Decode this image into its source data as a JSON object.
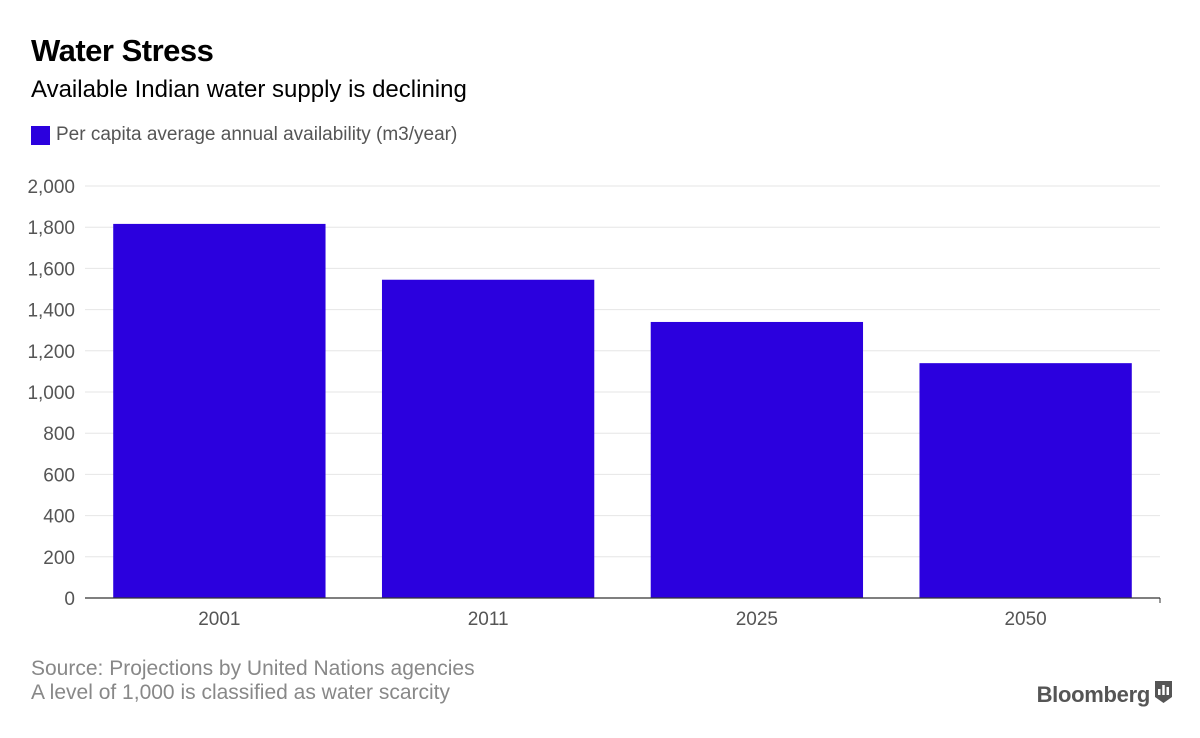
{
  "title": "Water Stress",
  "subtitle": "Available Indian water supply is declining",
  "colors": {
    "bar": "#2b00de",
    "grid": "#e6e6e6",
    "axis": "#333333",
    "text_muted": "#555555",
    "footer": "#888888"
  },
  "footer": {
    "source": "Source: Projections by United Nations agencies",
    "note": "A level of 1,000 is classified as water scarcity"
  },
  "brand": {
    "name": "Bloomberg",
    "icon": "bloomberg-chart-icon"
  },
  "chart_data": {
    "type": "bar",
    "categories": [
      "2001",
      "2011",
      "2025",
      "2050"
    ],
    "series": [
      {
        "name": "Per capita average annual availability (m3/year)",
        "values": [
          1816,
          1545,
          1340,
          1140
        ]
      }
    ],
    "ylim": [
      0,
      2000
    ],
    "yticks": [
      0,
      200,
      400,
      600,
      800,
      1000,
      1200,
      1400,
      1600,
      1800,
      2000
    ],
    "ytick_labels": [
      "0",
      "200",
      "400",
      "600",
      "800",
      "1,000",
      "1,200",
      "1,400",
      "1,600",
      "1,800",
      "2,000"
    ],
    "grid": true,
    "legend": "top-left"
  }
}
